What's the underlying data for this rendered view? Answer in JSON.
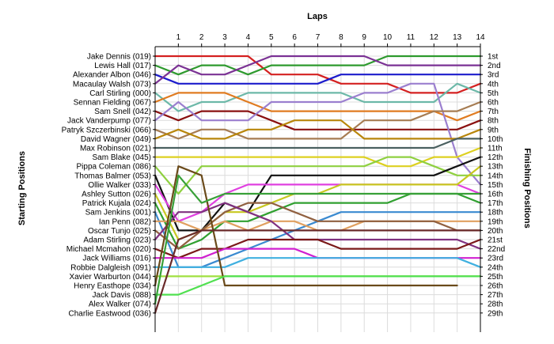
{
  "chart_data": {
    "type": "line",
    "title": "",
    "x_axis_label": "Laps",
    "left_axis_label": "Starting Positions",
    "right_axis_label": "Finishing Positions",
    "x_ticks": [
      "1",
      "2",
      "3",
      "4",
      "5",
      "6",
      "7",
      "8",
      "9",
      "10",
      "11",
      "12",
      "13",
      "14"
    ],
    "y_range": [
      1,
      29
    ],
    "y_inverted": true,
    "grid": true,
    "starting_order": [
      "Jake Dennis (019)",
      "Lewis Hall (017)",
      "Alexander Albon (046)",
      "Macaulay Walsh (073)",
      "Carl Stirling (000)",
      "Sennan Fielding (067)",
      "Sam Snell (042)",
      "Jack Vanderpump (077)",
      "Patryk Szczerbinski (066)",
      "David Wagner (049)",
      "Max Robinson (021)",
      "Sam Blake (045)",
      "Pippa Coleman (086)",
      "Thomas Balmer (053)",
      "Ollie Walker (033)",
      "Ashley Sutton (026)",
      "Patrick Kujala (024)",
      "Sam Jenkins (001)",
      "Ian Penn (082)",
      "Oscar Tunjo (025)",
      "Adam Stirling (023)",
      "Michael Mcmahon (020)",
      "Jack Williams (016)",
      "Robbie Dalgleish (091)",
      "Xavier Warburton (044)",
      "Henry Easthope (034)",
      "Jack Davis (088)",
      "Alex Walker (074)",
      "Charlie Eastwood (036)"
    ],
    "finishing_labels": [
      "1st",
      "2nd",
      "3rd",
      "4th",
      "5th",
      "6th",
      "7th",
      "8th",
      "9th",
      "10th",
      "11th",
      "12th",
      "13th",
      "14th",
      "15th",
      "16th",
      "17th",
      "18th",
      "19th",
      "20th",
      "21st",
      "22nd",
      "23rd",
      "24th",
      "25th",
      "26th",
      "27th",
      "28th",
      "29th"
    ],
    "series": [
      {
        "color": "#d42020",
        "start": 1,
        "positions": [
          1,
          1,
          1,
          1,
          3,
          3,
          3,
          4,
          4,
          4,
          5,
          5,
          5,
          4
        ]
      },
      {
        "color": "#2e9a2e",
        "start": 2,
        "positions": [
          3,
          2,
          2,
          3,
          2,
          2,
          2,
          2,
          2,
          1,
          1,
          1,
          1,
          1
        ]
      },
      {
        "color": "#1c1ccc",
        "start": 3,
        "positions": [
          4,
          4,
          4,
          4,
          4,
          4,
          4,
          3,
          3,
          3,
          3,
          3,
          3,
          3
        ]
      },
      {
        "color": "#7b3294",
        "start": 4,
        "positions": [
          2,
          3,
          3,
          2,
          1,
          1,
          1,
          1,
          1,
          2,
          2,
          2,
          2,
          2
        ]
      },
      {
        "color": "#6cb8a8",
        "start": 5,
        "positions": [
          7,
          6,
          6,
          5,
          5,
          5,
          5,
          5,
          6,
          6,
          6,
          6,
          4,
          5
        ]
      },
      {
        "color": "#e07b20",
        "start": 6,
        "positions": [
          5,
          5,
          5,
          6,
          7,
          7,
          7,
          7,
          7,
          7,
          7,
          7,
          8,
          7
        ]
      },
      {
        "color": "#8a1010",
        "start": 7,
        "positions": [
          8,
          7,
          7,
          7,
          8,
          9,
          9,
          9,
          9,
          9,
          9,
          9,
          9,
          8
        ]
      },
      {
        "color": "#9b7fcf",
        "start": 8,
        "positions": [
          6,
          8,
          8,
          8,
          6,
          6,
          6,
          6,
          5,
          5,
          4,
          4,
          12,
          15
        ]
      },
      {
        "color": "#a67c52",
        "start": 9,
        "positions": [
          10,
          9,
          9,
          10,
          10,
          10,
          10,
          10,
          8,
          8,
          8,
          7,
          7,
          6
        ]
      },
      {
        "color": "#b8860b",
        "start": 10,
        "positions": [
          9,
          10,
          10,
          9,
          9,
          8,
          8,
          8,
          10,
          10,
          10,
          10,
          10,
          9
        ]
      },
      {
        "color": "#4a6060",
        "start": 11,
        "positions": [
          11,
          11,
          11,
          11,
          11,
          11,
          11,
          11,
          11,
          11,
          11,
          11,
          10,
          10
        ]
      },
      {
        "color": "#ddd020",
        "start": 12,
        "positions": [
          12,
          12,
          12,
          12,
          12,
          12,
          12,
          12,
          12,
          13,
          13,
          12,
          12,
          11
        ]
      },
      {
        "color": "#8fd040",
        "start": 13,
        "positions": [
          16,
          13,
          13,
          13,
          13,
          13,
          13,
          13,
          13,
          12,
          12,
          13,
          14,
          14
        ]
      },
      {
        "color": "#111111",
        "start": 14,
        "positions": [
          20,
          20,
          17,
          18,
          14,
          14,
          14,
          14,
          14,
          14,
          14,
          14,
          13,
          12
        ]
      },
      {
        "color": "#e040e0",
        "start": 15,
        "positions": [
          19,
          18,
          16,
          15,
          15,
          15,
          15,
          15,
          15,
          15,
          15,
          15,
          15,
          16
        ]
      },
      {
        "color": "#c8c820",
        "start": 16,
        "positions": [
          21,
          20,
          18,
          18,
          17,
          16,
          16,
          15,
          15,
          15,
          15,
          15,
          15,
          13
        ]
      },
      {
        "color": "#30a030",
        "start": 17,
        "positions": [
          22,
          21,
          19,
          19,
          18,
          17,
          17,
          17,
          17,
          17,
          16,
          16,
          16,
          17
        ]
      },
      {
        "color": "#3a8ad0",
        "start": 18,
        "positions": [
          24,
          24,
          23,
          22,
          21,
          20,
          19,
          18,
          18,
          18,
          18,
          18,
          18,
          18
        ]
      },
      {
        "color": "#e0a060",
        "start": 19,
        "positions": [
          19,
          20,
          19,
          20,
          19,
          19,
          20,
          20,
          19,
          19,
          19,
          19,
          19,
          19
        ]
      },
      {
        "color": "#906040",
        "start": 20,
        "positions": [
          22,
          20,
          18,
          17,
          17,
          18,
          19,
          19,
          19,
          19,
          19,
          19,
          20,
          20
        ]
      },
      {
        "color": "#803080",
        "start": 21,
        "positions": [
          18,
          18,
          17,
          18,
          19,
          21,
          21,
          21,
          21,
          21,
          21,
          21,
          21,
          22
        ]
      },
      {
        "color": "#7a1818",
        "start": 22,
        "positions": [
          23,
          22,
          22,
          21,
          21,
          21,
          21,
          22,
          22,
          22,
          22,
          22,
          22,
          21
        ]
      },
      {
        "color": "#d020d0",
        "start": 23,
        "positions": [
          23,
          23,
          22,
          22,
          22,
          22,
          23,
          23,
          23,
          23,
          23,
          23,
          23,
          23
        ]
      },
      {
        "color": "#40b0e0",
        "start": 24,
        "positions": [
          24,
          24,
          24,
          23,
          23,
          23,
          23,
          23,
          23,
          23,
          23,
          23,
          23,
          24
        ]
      },
      {
        "color": "#a0e040",
        "start": 25,
        "positions": [
          25,
          25,
          25,
          25,
          25,
          25,
          25,
          25,
          25,
          25,
          25,
          25,
          25,
          25
        ]
      },
      {
        "color": "#6a4a1a",
        "start": 26,
        "positions": [
          13,
          14,
          26,
          26,
          26,
          26,
          26,
          26,
          26,
          26,
          26,
          26,
          26
        ]
      },
      {
        "color": "#50e050",
        "start": 27,
        "positions": [
          27,
          26,
          25,
          25,
          25,
          25,
          25,
          25,
          25,
          25,
          25,
          25,
          25,
          25
        ]
      },
      {
        "color": "#38a038",
        "start": 28,
        "positions": [
          14,
          17,
          16,
          16,
          16,
          16,
          16,
          16,
          16,
          16,
          16,
          16,
          16,
          16
        ]
      },
      {
        "color": "#6a2a2a",
        "start": 29,
        "positions": [
          21,
          20,
          20,
          20,
          20,
          20,
          20,
          20,
          20,
          20,
          20,
          20,
          20,
          20
        ]
      }
    ]
  }
}
